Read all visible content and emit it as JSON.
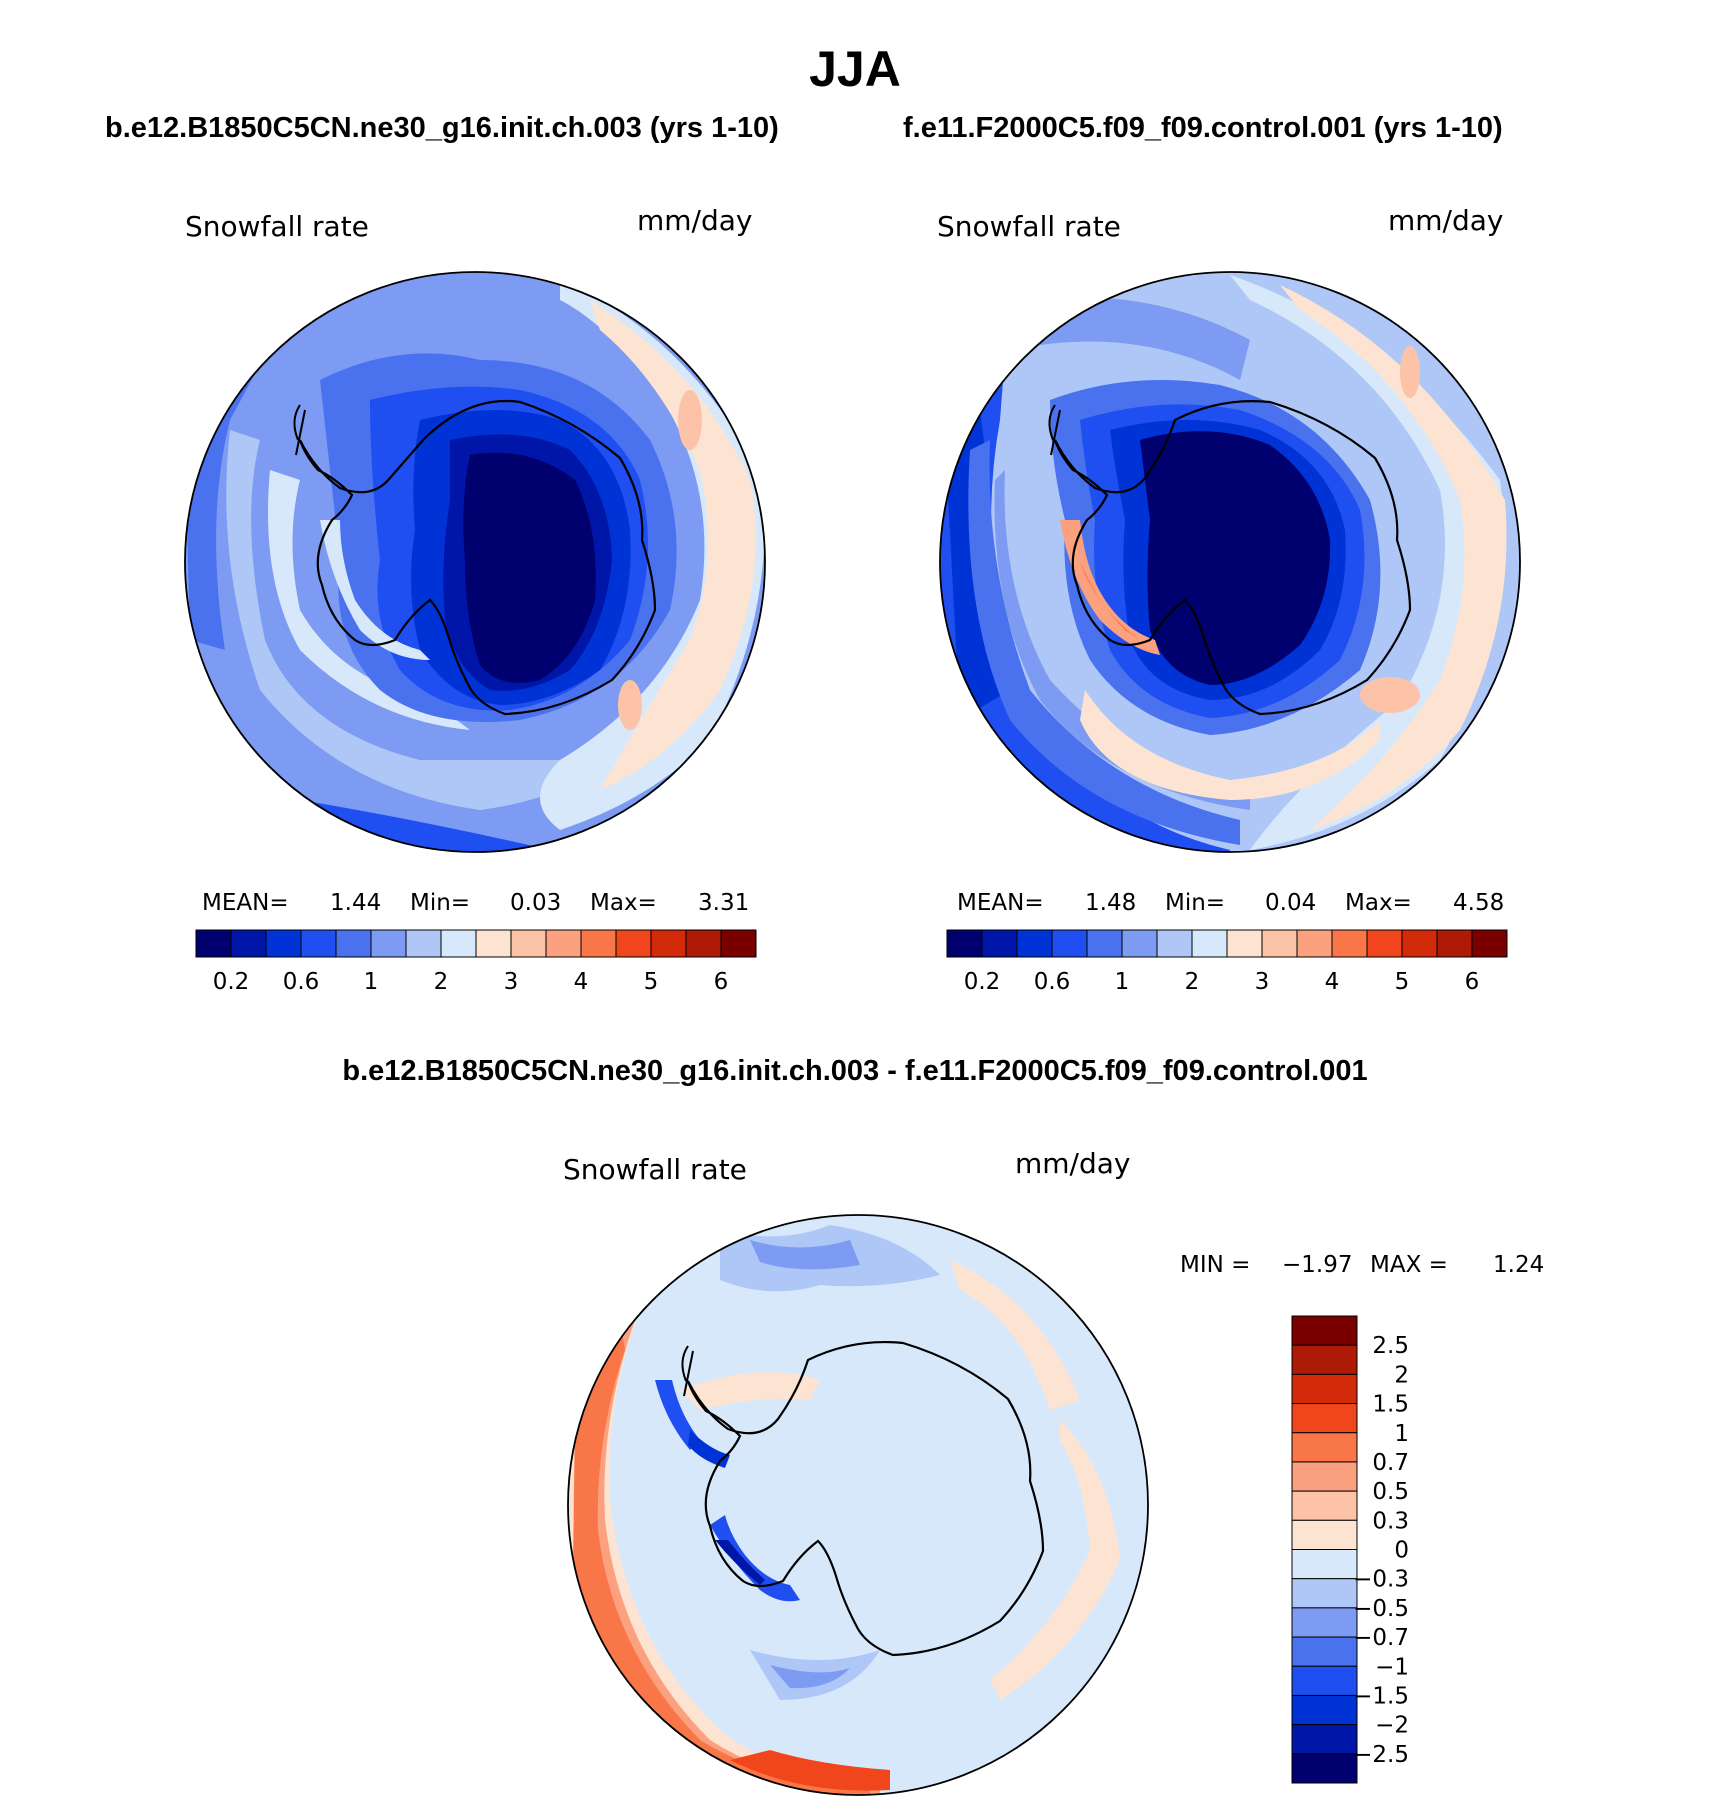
{
  "title": "JJA",
  "variable": "Snowfall rate",
  "units": "mm/day",
  "panels": [
    {
      "subtitle": "b.e12.B1850C5CN.ne30_g16.init.ch.003 (yrs 1-10)",
      "stats": {
        "mean_label": "MEAN=",
        "mean": "1.44",
        "min_label": "Min=",
        "min": "0.03",
        "max_label": "Max=",
        "max": "3.31"
      }
    },
    {
      "subtitle": "f.e11.F2000C5.f09_f09.control.001 (yrs 1-10)",
      "stats": {
        "mean_label": "MEAN=",
        "mean": "1.48",
        "min_label": "Min=",
        "min": "0.04",
        "max_label": "Max=",
        "max": "4.58"
      }
    }
  ],
  "diff": {
    "subtitle": "b.e12.B1850C5CN.ne30_g16.init.ch.003 - f.e11.F2000C5.f09_f09.control.001",
    "min_label": "MIN =",
    "min": "−1.97",
    "max_label": "MAX =",
    "max": "1.24"
  },
  "colorbar_top": {
    "colors": [
      "#00006e",
      "#0016a8",
      "#0033d6",
      "#1f4ff0",
      "#4a72ef",
      "#7d9bf2",
      "#aec7f7",
      "#d8e8fb",
      "#fde4d2",
      "#fdc3a8",
      "#fca17f",
      "#f97648",
      "#f1461c",
      "#d32a0a",
      "#ad1a05",
      "#7a0000"
    ],
    "labels": [
      "0.2",
      "0.6",
      "1",
      "2",
      "3",
      "4",
      "5",
      "6"
    ]
  },
  "colorbar_diff": {
    "colors": [
      "#7a0000",
      "#ad1a05",
      "#d32a0a",
      "#f1461c",
      "#f97648",
      "#fca17f",
      "#fdc3a8",
      "#fde4d2",
      "#d8e8fb",
      "#aec7f7",
      "#7d9bf2",
      "#4a72ef",
      "#1f4ff0",
      "#0033d6",
      "#0016a8",
      "#00006e"
    ],
    "labels": [
      "2.5",
      "2",
      "1.5",
      "1",
      "0.7",
      "0.5",
      "0.3",
      "0",
      "−0.3",
      "−0.5",
      "−0.7",
      "−1",
      "−1.5",
      "−2",
      "−2.5"
    ]
  }
}
